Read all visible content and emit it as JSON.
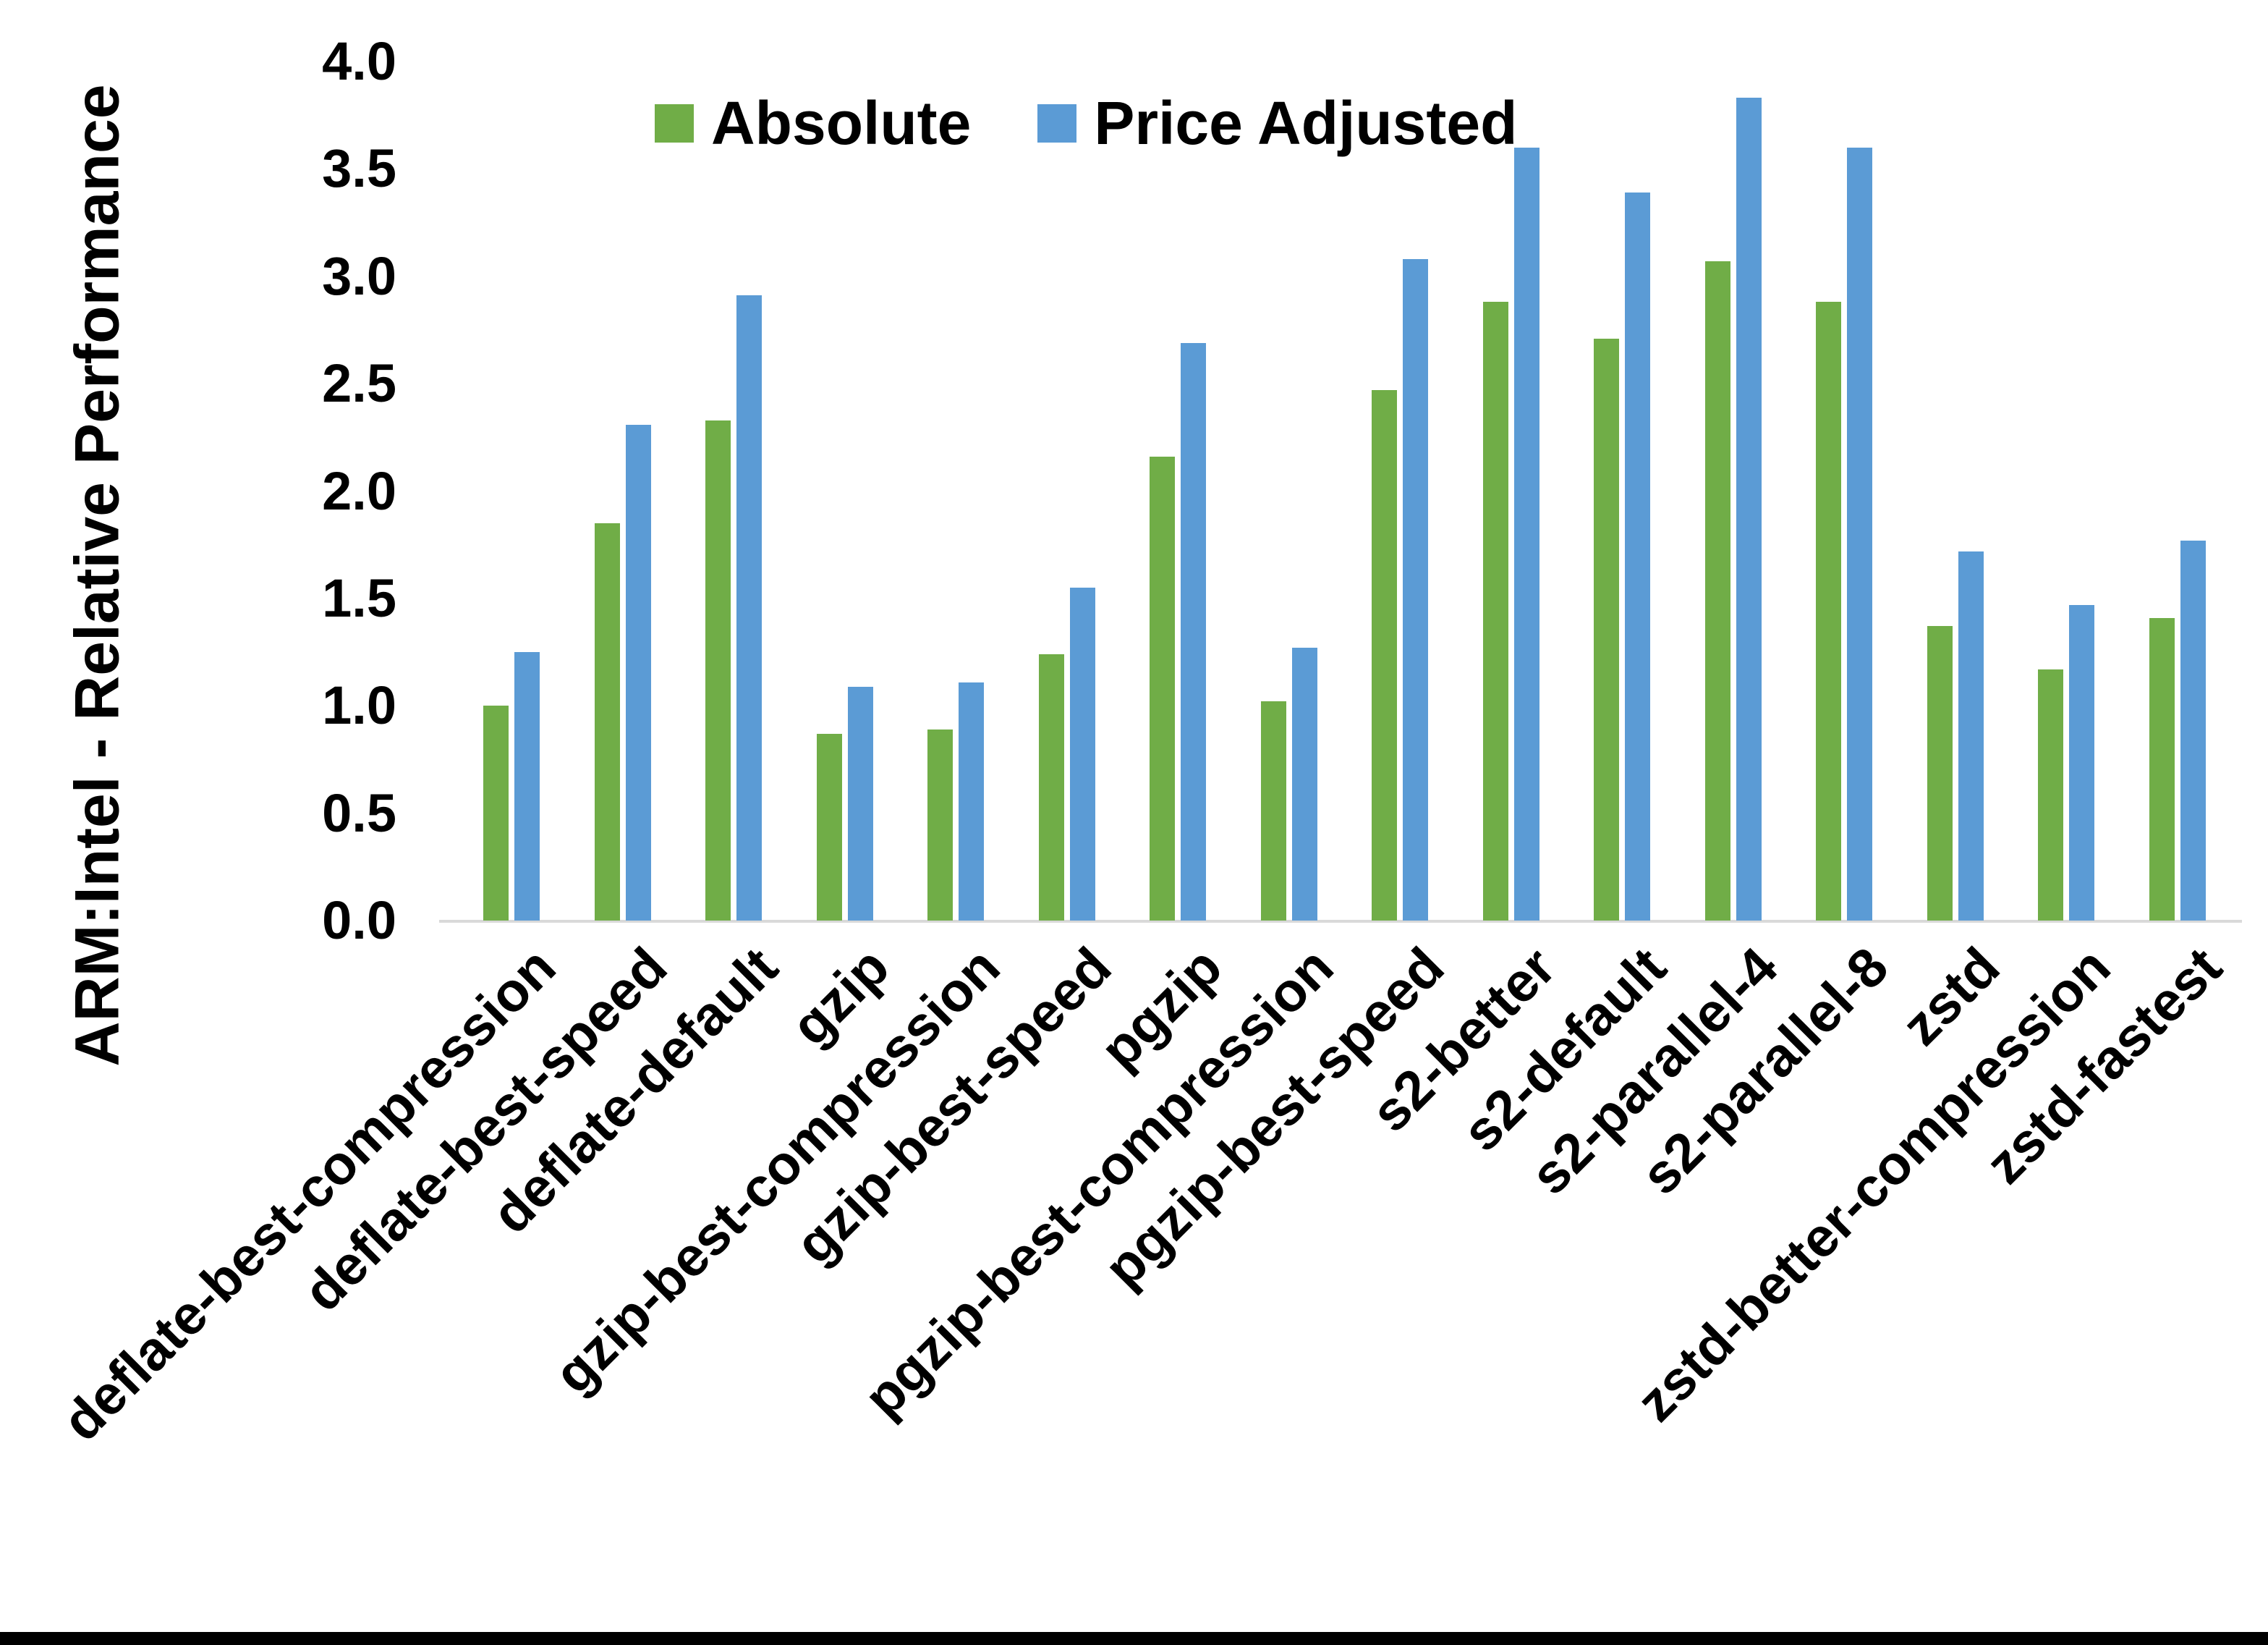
{
  "page": {
    "background_color": "#ffffff",
    "footer_bar_color": "#000000"
  },
  "chart_data": {
    "type": "bar",
    "title": "",
    "xlabel": "",
    "ylabel": "ARM:Intel - Relative Performance",
    "ylim": [
      0.0,
      4.0
    ],
    "ytick_step": 0.5,
    "ytick_labels": [
      "4.0",
      "3.5",
      "3.0",
      "2.5",
      "2.0",
      "1.5",
      "1.0",
      "0.5",
      "0.0"
    ],
    "grid": false,
    "legend_position": "top-center",
    "axis_line_color": "#d9d9d9",
    "categories": [
      "deflate-best-compression",
      "deflate-best-speed",
      "deflate-default",
      "gzip",
      "gzip-best-compression",
      "gzip-best-speed",
      "pgzip",
      "pgzip-best-compression",
      "pgzip-best-speed",
      "s2-better",
      "s2-default",
      "s2-parallel-4",
      "s2-parallel-8",
      "zstd",
      "zstd-better-compression",
      "zstd-fastest"
    ],
    "series": [
      {
        "name": "Absolute",
        "color": "#70AD47",
        "values": [
          1.0,
          1.85,
          2.33,
          0.87,
          0.89,
          1.24,
          2.16,
          1.02,
          2.47,
          2.88,
          2.71,
          3.07,
          2.88,
          1.37,
          1.17,
          1.41
        ]
      },
      {
        "name": "Price Adjusted",
        "color": "#5B9BD5",
        "values": [
          1.25,
          2.31,
          2.91,
          1.09,
          1.11,
          1.55,
          2.69,
          1.27,
          3.08,
          3.6,
          3.39,
          3.83,
          3.6,
          1.72,
          1.47,
          1.77
        ]
      }
    ]
  }
}
